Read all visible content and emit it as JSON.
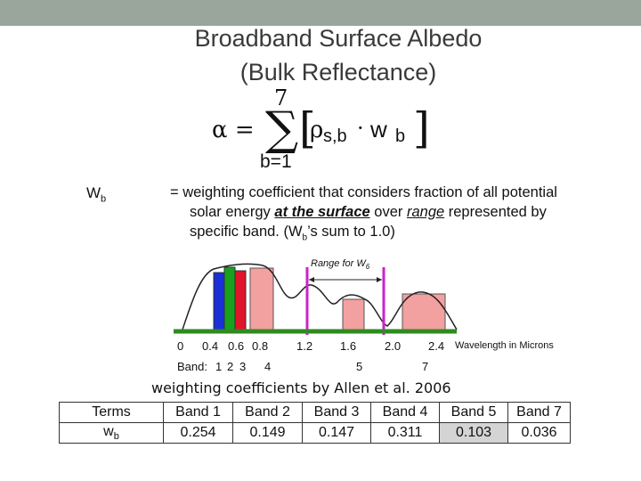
{
  "title": {
    "line1": "Broadband Surface Albedo",
    "line2": "(Bulk Reflectance)"
  },
  "formula": {
    "lhs": "α =",
    "upper_limit": "7",
    "lower_limit": "b=1",
    "term_rho_sub": "s,b",
    "term_w_sub": "b"
  },
  "definition": {
    "symbol": "W",
    "symbol_sub": "b",
    "text_a": "= weighting coefficient that considers fraction of all potential",
    "text_b_pre": "solar energy ",
    "text_b_em1": "at the surface",
    "text_b_mid": " over ",
    "text_b_em2": "range",
    "text_b_post": " represented by",
    "text_c_pre": "specific band.  (W",
    "text_c_sub": "b",
    "text_c_post": "’s sum to 1.0)"
  },
  "figure": {
    "range_label": "Range for W",
    "range_label_sub": "6",
    "x_ticks": [
      "0",
      "0.4",
      "0.6",
      "0.8",
      "1.2",
      "1.6",
      "2.0",
      "2.4"
    ],
    "x_label": "Wavelength in Microns",
    "band_prefix": "Band:",
    "bands": [
      "1",
      "2",
      "3",
      "4",
      "5",
      "7"
    ],
    "colors": {
      "band1": "#1a2fd6",
      "band2": "#18a11c",
      "band3": "#e0142a",
      "bands_other": "#f3a0a0",
      "range_marker": "#cc22cc",
      "axis": "#2e8b1f"
    }
  },
  "allen_caption": "weighting coefficients by Allen et al. 2006",
  "table": {
    "header": [
      "Terms",
      "Band 1",
      "Band 2",
      "Band 3",
      "Band 4",
      "Band 5",
      "Band 7"
    ],
    "row_label": "w",
    "row_label_sub": "b",
    "values": [
      "0.254",
      "0.149",
      "0.147",
      "0.311",
      "0.103",
      "0.036"
    ]
  }
}
